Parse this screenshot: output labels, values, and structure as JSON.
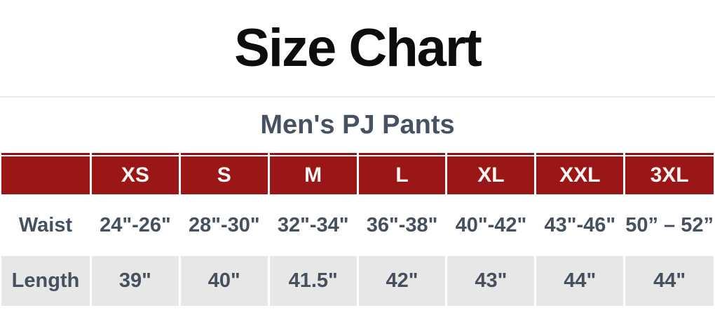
{
  "chart_data": {
    "type": "table",
    "title": "Size Chart",
    "subtitle": "Men's PJ Pants",
    "columns": [
      "",
      "XS",
      "S",
      "M",
      "L",
      "XL",
      "XXL",
      "3XL"
    ],
    "rows": [
      [
        "Waist",
        "24\"-26\"",
        "28\"-30\"",
        "32\"-34\"",
        "36\"-38\"",
        "40\"-42\"",
        "43\"-46\"",
        "50” – 52”"
      ],
      [
        "Length",
        "39\"",
        "40\"",
        "41.5\"",
        "42\"",
        "43\"",
        "44\"",
        "44\""
      ]
    ],
    "layout_hints": {
      "header_position": "top",
      "row_label_column": true,
      "grid": "white gaps between cells, red segmented top border"
    }
  },
  "colors": {
    "header_bg": "#9b1717",
    "top_border": "#8e1414",
    "alt_row_bg": "#e7e7e7",
    "body_text": "#47505e",
    "subtitle_text": "#475161",
    "title_text": "#0d0d0d",
    "divider_line": "#ebebeb"
  }
}
